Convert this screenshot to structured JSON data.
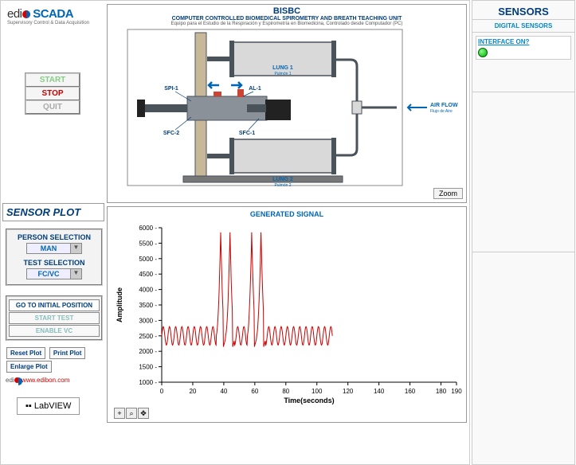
{
  "logo": {
    "prefix": "edi",
    "suffix": "SCADA",
    "tagline": "Supervisory Control & Data Acquisition"
  },
  "controls": {
    "start": "START",
    "stop": "STOP",
    "quit": "QUIT"
  },
  "diagram": {
    "title": "BISBC",
    "subtitle": "COMPUTER CONTROLLED BIOMEDICAL SPIROMETRY AND BREATH TEACHING UNIT",
    "subtitle_es": "Equipo para el Estudio de la Respiración y Espirometría en Biomedicina, Controlado desde Computador (PC)",
    "labels": {
      "lung1": "LUNG 1",
      "lung1_es": "Pulmón 1",
      "lung2": "LUNG 2",
      "lung2_es": "Pulmón 2",
      "spi1": "SPI-1",
      "sfc1": "SFC-1",
      "sfc2": "SFC-2",
      "al1": "AL-1",
      "airflow": "AIR FLOW",
      "airflow_es": "Flujo de Aire"
    },
    "zoom": "Zoom",
    "colors": {
      "body": "#8a9199",
      "outline": "#4a525a",
      "lung_fill": "#d9d9d9",
      "support": "#c7b89a",
      "arrow": "#0066b3",
      "label": "#003d7a",
      "sensor_red": "#c43",
      "black": "#222"
    }
  },
  "sensor_plot_label": "SENSOR PLOT",
  "selection": {
    "person_label": "PERSON SELECTION",
    "person_value": "MAN",
    "test_label": "TEST SELECTION",
    "test_value": "FC/VC"
  },
  "test_buttons": {
    "initial": "GO TO INITIAL POSITION",
    "start": "START TEST",
    "enable": "ENABLE VC"
  },
  "plot_buttons": {
    "reset": "Reset Plot",
    "print": "Print Plot",
    "enlarge": "Enlarge Plot"
  },
  "edibon_url": "www.edibon.com",
  "labview": "LabVIEW",
  "chart": {
    "title": "GENERATED SIGNAL",
    "ylabel": "Amplitude",
    "xlabel": "Time(seconds)",
    "y_min": 1000,
    "y_max": 6000,
    "y_step": 500,
    "y_ticks": [
      1000,
      1500,
      2000,
      2500,
      3000,
      3500,
      4000,
      4500,
      5000,
      5500,
      6000
    ],
    "x_min": 0,
    "x_max": 190,
    "x_step": 20,
    "x_ticks": [
      0,
      20,
      40,
      60,
      80,
      100,
      120,
      140,
      160,
      180,
      190
    ],
    "line_color": "#cc0000",
    "grid_color": "#888",
    "bg": "#ffffff",
    "baseline": 2500,
    "osc_amp": 300,
    "osc_period": 4,
    "spikes": [
      {
        "t": 38,
        "peak": 5850,
        "width": 3
      },
      {
        "t": 44,
        "peak": 5850,
        "width": 3
      },
      {
        "t": 58,
        "peak": 5850,
        "width": 3
      },
      {
        "t": 64,
        "peak": 5850,
        "width": 3
      }
    ],
    "data_end": 110
  },
  "sensors": {
    "title": "SENSORS",
    "subtitle": "DIGITAL SENSORS",
    "interface": "INTERFACE ON?",
    "led_on": true
  }
}
